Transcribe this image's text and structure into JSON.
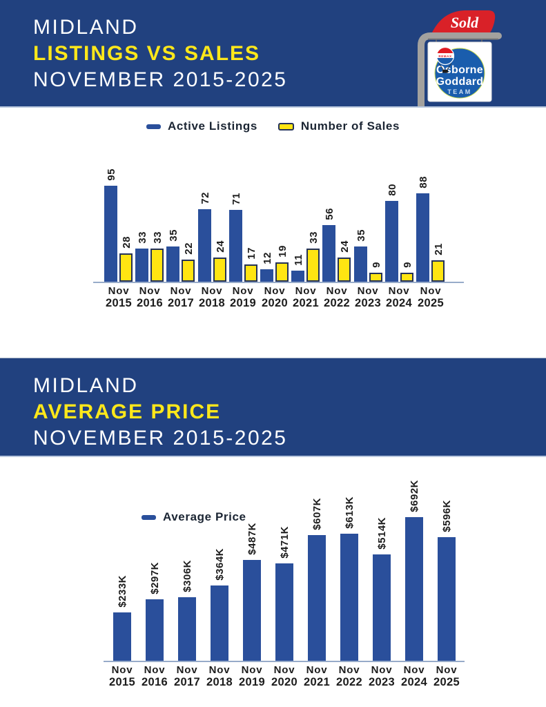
{
  "banner1": {
    "line1": "MIDLAND",
    "line2": "LISTINGS VS SALES",
    "line3": "NOVEMBER 2015-2025"
  },
  "banner2": {
    "line1": "MIDLAND",
    "line2": "AVERAGE PRICE",
    "line3": "NOVEMBER 2015-2025"
  },
  "logo": {
    "sold": "Sold",
    "name1": "Osborne",
    "name2": "Goddard",
    "name3": "TEAM",
    "balloon": "REMAX"
  },
  "colors": {
    "banner_blue": "#21417f",
    "bar_blue": "#2a4f9b",
    "bar_yellow": "#ffe512",
    "yellow_border": "#233158",
    "title_yellow": "#ffe81a",
    "axis_line": "#97abc9",
    "text_dark": "#1c1c1c",
    "logo_red": "#d92128",
    "logo_circle_blue": "#1a5dad",
    "post_grey": "#a3a19e"
  },
  "chart_data": [
    {
      "type": "bar",
      "title": "MIDLAND LISTINGS VS SALES NOVEMBER 2015-2025",
      "xlabel": "",
      "ylabel": "",
      "ylim": [
        0,
        100
      ],
      "grid": false,
      "legend_position": "top-center",
      "value_label_rotation": -90,
      "categories": [
        {
          "month": "Nov",
          "year": "2015"
        },
        {
          "month": "Nov",
          "year": "2016"
        },
        {
          "month": "Nov",
          "year": "2017"
        },
        {
          "month": "Nov",
          "year": "2018"
        },
        {
          "month": "Nov",
          "year": "2019"
        },
        {
          "month": "Nov",
          "year": "2020"
        },
        {
          "month": "Nov",
          "year": "2021"
        },
        {
          "month": "Nov",
          "year": "2022"
        },
        {
          "month": "Nov",
          "year": "2023"
        },
        {
          "month": "Nov",
          "year": "2024"
        },
        {
          "month": "Nov",
          "year": "2025"
        }
      ],
      "series": [
        {
          "name": "Active Listings",
          "color": "#2a4f9b",
          "values": [
            95,
            33,
            35,
            72,
            71,
            12,
            11,
            56,
            35,
            80,
            88
          ],
          "labels": [
            "95",
            "33",
            "35",
            "72",
            "71",
            "12",
            "11",
            "56",
            "35",
            "80",
            "88"
          ]
        },
        {
          "name": "Number of Sales",
          "color": "#ffe512",
          "border": "#233158",
          "values": [
            28,
            33,
            22,
            24,
            17,
            19,
            33,
            24,
            9,
            9,
            21
          ],
          "labels": [
            "28",
            "33",
            "22",
            "24",
            "17",
            "19",
            "33",
            "24",
            "9",
            "9",
            "21"
          ]
        }
      ]
    },
    {
      "type": "bar",
      "title": "MIDLAND AVERAGE PRICE NOVEMBER 2015-2025",
      "xlabel": "",
      "ylabel": "",
      "ylim": [
        0,
        750
      ],
      "grid": false,
      "legend_position": "top-left",
      "value_label_rotation": -90,
      "unit": "thousands of dollars",
      "categories": [
        {
          "month": "Nov",
          "year": "2015"
        },
        {
          "month": "Nov",
          "year": "2016"
        },
        {
          "month": "Nov",
          "year": "2017"
        },
        {
          "month": "Nov",
          "year": "2018"
        },
        {
          "month": "Nov",
          "year": "2019"
        },
        {
          "month": "Nov",
          "year": "2020"
        },
        {
          "month": "Nov",
          "year": "2021"
        },
        {
          "month": "Nov",
          "year": "2022"
        },
        {
          "month": "Nov",
          "year": "2023"
        },
        {
          "month": "Nov",
          "year": "2024"
        },
        {
          "month": "Nov",
          "year": "2025"
        }
      ],
      "series": [
        {
          "name": "Average Price",
          "color": "#2a4f9b",
          "values": [
            233,
            297,
            306,
            364,
            487,
            471,
            607,
            613,
            514,
            692,
            596
          ],
          "labels": [
            "$233K",
            "$297K",
            "$306K",
            "$364K",
            "$487K",
            "$471K",
            "$607K",
            "$613K",
            "$514K",
            "$692K",
            "$596K"
          ]
        }
      ]
    }
  ]
}
